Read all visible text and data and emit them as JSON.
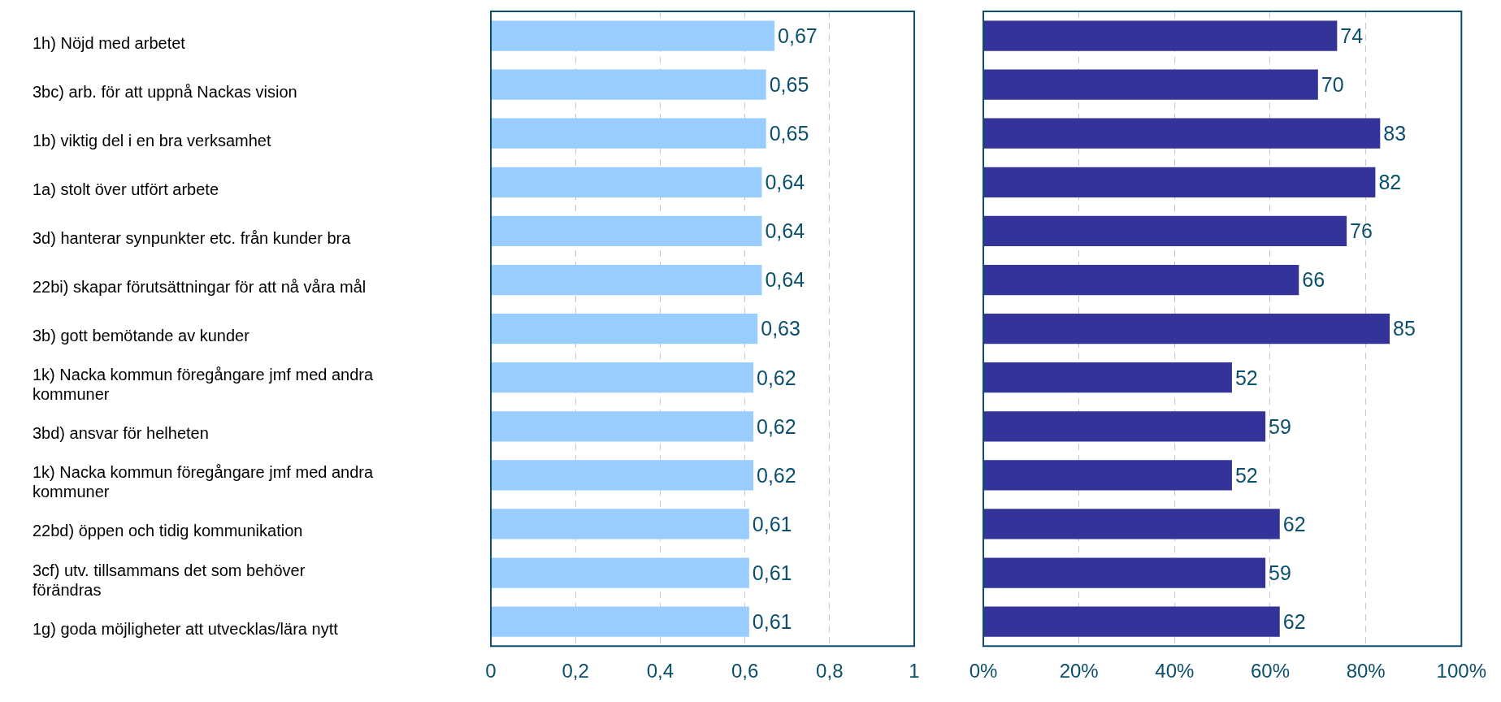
{
  "chart_data": [
    {
      "type": "bar",
      "orientation": "horizontal",
      "categories": [
        "1h) Nöjd med arbetet",
        "3bc) arb. för att uppnå Nackas vision",
        "1b) viktig del i en bra verksamhet",
        "1a) stolt över utfört arbete",
        "3d) hanterar synpunkter etc. från kunder bra",
        "22bi) skapar förutsättningar för att nå våra mål",
        "3b) gott bemötande av kunder",
        "1k) Nacka kommun föregångare jmf med andra kommuner",
        "3bd) ansvar för helheten",
        "1k) Nacka kommun föregångare jmf med andra kommuner",
        "22bd) öppen och tidig kommunikation",
        "3cf) utv. tillsammans det som behöver förändras",
        "1g) goda möjligheter att utvecklas/lära nytt"
      ],
      "values": [
        0.67,
        0.65,
        0.65,
        0.64,
        0.64,
        0.64,
        0.63,
        0.62,
        0.62,
        0.62,
        0.61,
        0.61,
        0.61
      ],
      "value_labels": [
        "0,67",
        "0,65",
        "0,65",
        "0,64",
        "0,64",
        "0,64",
        "0,63",
        "0,62",
        "0,62",
        "0,62",
        "0,61",
        "0,61",
        "0,61"
      ],
      "color": "#99ccff",
      "xlim": [
        0,
        1
      ],
      "xticks": [
        0,
        {
          "value": 0.2,
          "label": "0,2"
        },
        {
          "value": 0.4,
          "label": "0,4"
        },
        {
          "value": 0.6,
          "label": "0,6"
        },
        {
          "value": 0.8,
          "label": "0,8"
        },
        1
      ],
      "grid": "x"
    },
    {
      "type": "bar",
      "orientation": "horizontal",
      "categories": [
        null,
        null,
        null,
        null,
        null,
        null,
        null,
        null,
        null,
        null,
        null,
        null,
        null
      ],
      "values": [
        74,
        70,
        83,
        82,
        76,
        66,
        85,
        52,
        59,
        52,
        62,
        59,
        62
      ],
      "data_labels": true,
      "color": "#333399",
      "xlim": [
        0,
        100
      ],
      "xticks": [
        {
          "value": 0,
          "label": "0%"
        },
        {
          "value": 20,
          "label": "20%"
        },
        {
          "value": 40,
          "label": "40%"
        },
        {
          "value": 60,
          "label": "60%"
        },
        {
          "value": 80,
          "label": "80%"
        },
        {
          "value": 100,
          "label": "100%"
        }
      ],
      "grid": "x",
      "tick_labels": "x"
    }
  ]
}
